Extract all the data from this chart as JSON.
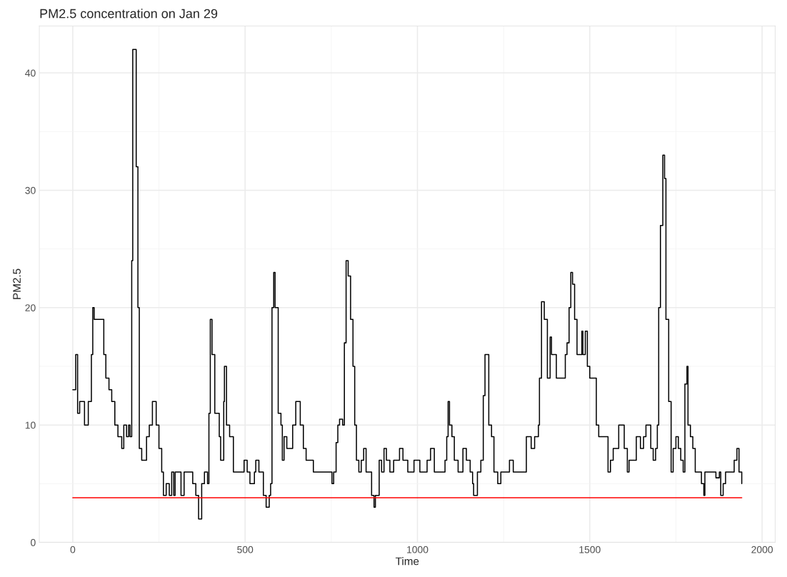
{
  "chart_data": {
    "type": "step",
    "title": "PM2.5 concentration on Jan 29",
    "xlabel": "Time",
    "ylabel": "PM2.5",
    "xlim": [
      -97,
      2038
    ],
    "xticks": [
      0,
      500,
      1000,
      1500,
      2000
    ],
    "ylim": [
      0,
      44
    ],
    "yticks": [
      0,
      10,
      20,
      30,
      40
    ],
    "grid": true,
    "series": [
      {
        "color": "#000000",
        "x": [
          0,
          8.5,
          14,
          20,
          29,
          34,
          41,
          45,
          54,
          58,
          62,
          81,
          90,
          96,
          105,
          113,
          122,
          131,
          142,
          148,
          156,
          162,
          166,
          171,
          174,
          181,
          184,
          189,
          193,
          200,
          210,
          214,
          222,
          231,
          242,
          250,
          258,
          263,
          271,
          280,
          287,
          293,
          297,
          310,
          314,
          323,
          338,
          348,
          357,
          365,
          374,
          382,
          391,
          395,
          399,
          404,
          412,
          425,
          429,
          438,
          440,
          446,
          455,
          466,
          493,
          497,
          506,
          514,
          527,
          531,
          540,
          553,
          561,
          570,
          574,
          578,
          583,
          587,
          596,
          604,
          608,
          613,
          621,
          630,
          638,
          647,
          653,
          660,
          669,
          677,
          688,
          698,
          719,
          750,
          752,
          757,
          764,
          769,
          774,
          783,
          788,
          793,
          799,
          806,
          813,
          818,
          823,
          830,
          837,
          844,
          851,
          861,
          867,
          874,
          878,
          889,
          896,
          903,
          910,
          920,
          931,
          948,
          958,
          972,
          990,
          1007,
          1028,
          1038,
          1049,
          1069,
          1080,
          1085,
          1089,
          1093,
          1100,
          1107,
          1118,
          1132,
          1142,
          1153,
          1160,
          1163,
          1174,
          1184,
          1191,
          1196,
          1200,
          1207,
          1215,
          1222,
          1233,
          1242,
          1260,
          1267,
          1278,
          1309,
          1316,
          1323,
          1330,
          1340,
          1351,
          1354,
          1360,
          1368,
          1377,
          1385,
          1389,
          1403,
          1421,
          1429,
          1434,
          1440,
          1445,
          1450,
          1456,
          1463,
          1474,
          1477,
          1480,
          1487,
          1493,
          1500,
          1508,
          1519,
          1526,
          1546,
          1553,
          1560,
          1568,
          1579,
          1584,
          1595,
          1600,
          1609,
          1614,
          1628,
          1635,
          1642,
          1647,
          1656,
          1663,
          1670,
          1677,
          1684,
          1691,
          1696,
          1700,
          1705,
          1712,
          1717,
          1721,
          1729,
          1736,
          1742,
          1750,
          1757,
          1764,
          1771,
          1776,
          1782,
          1785,
          1792,
          1799,
          1806,
          1824,
          1831,
          1834,
          1859,
          1866,
          1876,
          1880,
          1887,
          1894,
          1915,
          1919,
          1927,
          1933,
          1941
        ],
        "values": [
          13,
          16,
          11,
          12,
          12,
          10,
          10,
          12,
          16,
          20,
          19,
          19,
          16,
          14,
          13,
          12,
          10,
          9,
          8,
          10,
          9,
          10,
          9,
          24,
          42,
          42,
          32,
          20,
          8,
          7,
          7,
          9,
          10,
          12,
          10,
          8,
          6,
          4,
          5,
          4,
          6,
          4,
          6,
          6,
          4,
          6,
          6,
          5,
          4,
          2,
          5,
          6,
          5,
          11,
          19,
          16,
          11,
          9,
          7,
          12,
          15,
          10,
          9,
          6,
          6,
          7,
          6,
          5,
          6,
          7,
          6,
          4,
          3,
          4,
          5,
          20,
          23,
          20,
          11,
          10,
          7,
          9,
          8,
          8,
          10,
          12,
          12,
          10,
          8,
          7,
          7,
          6,
          6,
          6,
          5,
          6,
          8.5,
          10,
          10.5,
          10,
          17,
          24,
          22.7,
          19,
          15,
          10,
          7,
          6,
          7,
          8,
          6,
          6,
          4,
          3,
          4,
          7,
          6,
          8,
          7,
          6,
          7,
          8,
          7,
          6,
          7,
          6,
          7,
          8,
          6,
          6,
          7,
          9,
          12,
          10,
          9,
          7,
          6,
          8,
          7,
          6,
          5,
          4,
          6,
          7,
          12.5,
          16,
          16,
          10,
          9,
          6,
          5,
          6,
          6,
          7,
          6,
          6,
          9,
          9,
          8,
          9,
          10,
          14,
          20.5,
          19,
          14,
          17.5,
          16,
          14,
          14,
          16,
          17,
          20,
          23,
          22,
          19,
          16,
          16,
          18,
          16,
          18,
          15,
          14,
          14,
          10,
          9,
          9,
          6,
          7,
          8,
          8,
          10,
          10,
          8,
          6,
          7,
          7,
          9,
          9,
          8,
          9,
          10,
          10,
          8,
          7,
          8,
          10,
          20,
          27,
          33,
          31,
          19,
          12,
          6,
          8,
          9,
          8,
          7,
          6,
          13.5,
          15,
          10,
          9,
          8,
          6,
          5,
          4,
          6,
          6,
          5.5,
          6,
          4,
          5,
          6,
          6,
          7,
          8,
          6,
          5
        ]
      },
      {
        "type": "line",
        "color": "#ff0000",
        "x": [
          0,
          1941
        ],
        "values": [
          3.8,
          3.8
        ]
      }
    ]
  }
}
